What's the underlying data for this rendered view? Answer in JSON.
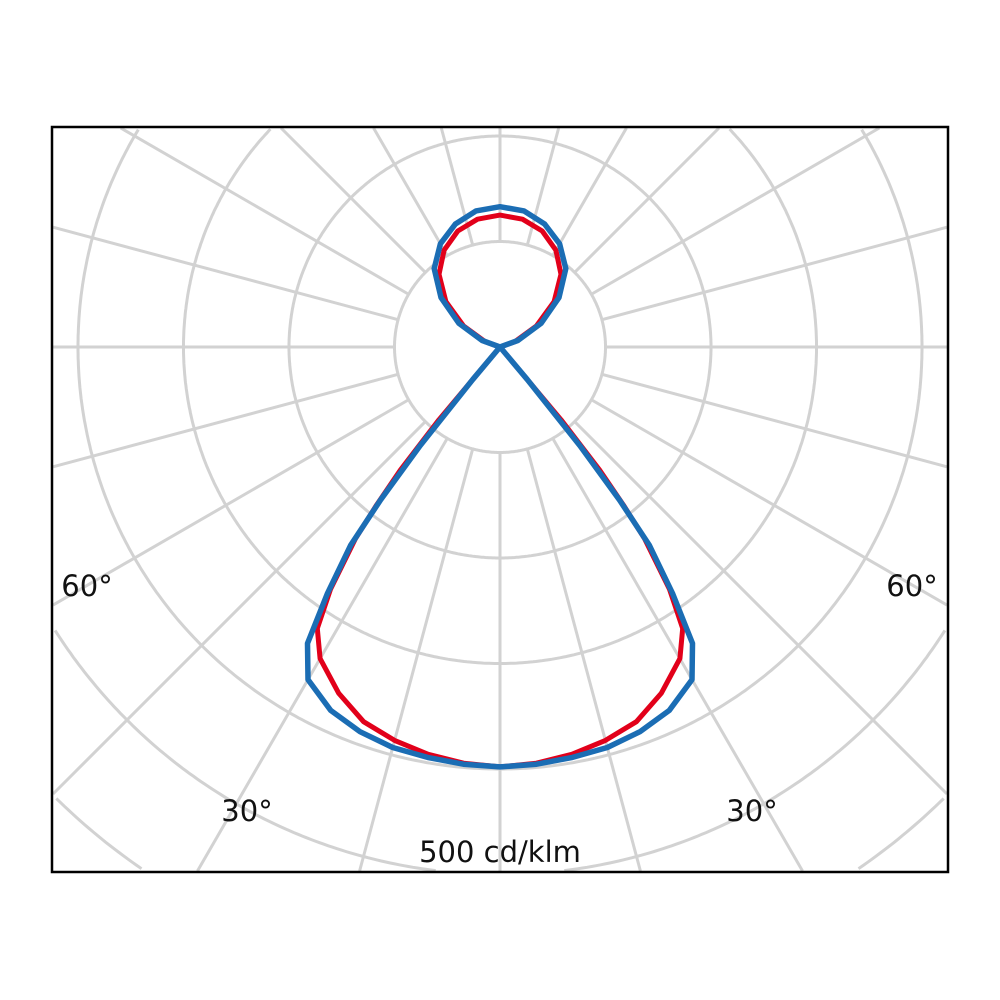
{
  "chart_data": {
    "type": "polar",
    "angle_reference": "0° = nadir (downward), symmetric",
    "radial_unit": "cd/klm",
    "radial_ring_step": 100,
    "spoke_step_deg": 15,
    "grid": true,
    "angle_labels": [
      "60°",
      "60°",
      "30°",
      "30°"
    ],
    "radial_label": "500 cd/klm",
    "gamma_deg": [
      0,
      5,
      10,
      15,
      20,
      25,
      30,
      33,
      35,
      37,
      38,
      39,
      40,
      41,
      45,
      90,
      100,
      110,
      120,
      130,
      140,
      150,
      160,
      170,
      180
    ],
    "series": [
      {
        "color": "#e2001a",
        "values": [
          398,
          396,
          392,
          386,
          378,
          362,
          341,
          318,
          280,
          228,
          190,
          150,
          90,
          0,
          0,
          0,
          0,
          15,
          40,
          67,
          90,
          106,
          117,
          123,
          125
        ]
      },
      {
        "color": "#1b6db4",
        "values": [
          398,
          397,
          395,
          393,
          388,
          380,
          364,
          335,
          285,
          235,
          184,
          120,
          40,
          0,
          0,
          0,
          0,
          18,
          45,
          73,
          97,
          113,
          124,
          131,
          133
        ]
      }
    ],
    "colors": {
      "grid": "#d2d2d2",
      "frame": "#000000"
    }
  }
}
